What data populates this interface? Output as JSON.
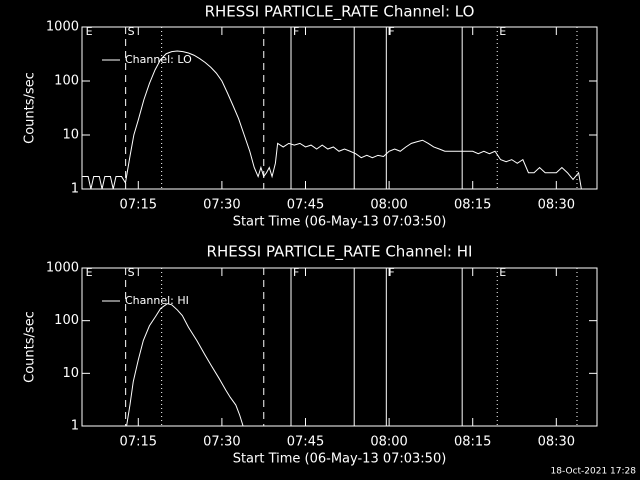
{
  "chart_data": [
    {
      "type": "line",
      "title": "RHESSI PARTICLE_RATE Channel: LO",
      "x_label": "Start Time (06-May-13 07:03:50)",
      "y_label": "Counts/sec",
      "xlim": [
        4.9,
        97.3
      ],
      "xticks": [
        {
          "value": 15,
          "label": "07:15"
        },
        {
          "value": 30,
          "label": "07:30"
        },
        {
          "value": 45,
          "label": "07:45"
        },
        {
          "value": 60,
          "label": "08:00"
        },
        {
          "value": 75,
          "label": "08:15"
        },
        {
          "value": 90,
          "label": "08:30"
        }
      ],
      "ylim": [
        1,
        1000
      ],
      "yticks": [
        1,
        10,
        100,
        1000
      ],
      "yscale": "log",
      "legend": "upper left",
      "series": [
        {
          "name": "Channel: LO",
          "color": "#ffffff",
          "x": [
            5,
            6,
            6.5,
            7,
            8,
            8.5,
            9,
            10,
            10.5,
            11,
            12,
            12.7,
            13.5,
            14.2,
            15,
            16,
            17,
            18,
            19,
            20,
            21,
            22,
            23,
            24,
            25,
            26,
            27,
            28,
            29,
            30,
            31,
            32,
            33,
            34,
            35,
            35.8,
            36.5,
            37,
            37.5,
            38,
            38.5,
            39,
            39.6,
            40,
            41,
            42,
            43,
            44,
            45,
            46,
            47,
            48,
            49,
            50,
            51,
            52,
            53,
            54,
            55,
            56,
            57,
            58,
            59,
            60,
            61,
            62,
            63,
            64,
            65,
            66,
            67,
            68,
            69,
            70,
            71,
            72,
            73,
            74,
            75,
            76,
            77,
            78,
            79,
            80,
            81,
            82,
            83,
            84,
            85,
            86,
            87,
            88,
            89,
            90,
            91,
            92,
            93,
            94,
            94.5
          ],
          "values": [
            1.7,
            1.7,
            1,
            1.7,
            1.7,
            1,
            1.7,
            1.7,
            1,
            1.7,
            1.7,
            1.3,
            4,
            10,
            19,
            45,
            90,
            160,
            250,
            320,
            350,
            360,
            350,
            330,
            300,
            260,
            220,
            180,
            140,
            100,
            60,
            35,
            20,
            10,
            5,
            2.5,
            1.7,
            2.5,
            1.7,
            2,
            2.5,
            1.7,
            3,
            7,
            6,
            7,
            6.5,
            7,
            6,
            6.5,
            5.5,
            6.5,
            5.5,
            6,
            5,
            5.5,
            5,
            4.5,
            3.8,
            4.2,
            3.8,
            4.2,
            4,
            5,
            5.5,
            5,
            6,
            7,
            7.5,
            8,
            7,
            6,
            5.5,
            5,
            5,
            5,
            5,
            5,
            5,
            4.5,
            5,
            4.5,
            5,
            3.5,
            3.2,
            3.5,
            3,
            3.5,
            2,
            2,
            2.5,
            2,
            2,
            2,
            2.5,
            2,
            1.5,
            2,
            1
          ]
        }
      ],
      "markers": [
        {
          "x": 12.73,
          "style": "dashed"
        },
        {
          "x": 19.19,
          "style": "dotted"
        },
        {
          "x": 37.51,
          "style": "dashed"
        },
        {
          "x": 42.4,
          "style": "solid"
        },
        {
          "x": 53.74,
          "style": "solid"
        },
        {
          "x": 59.5,
          "style": "solid"
        },
        {
          "x": 73.11,
          "style": "solid"
        },
        {
          "x": 79.4,
          "style": "dotted"
        },
        {
          "x": 93.71,
          "style": "dotted"
        }
      ],
      "annotations": [
        {
          "x": 5.2,
          "text": "E"
        },
        {
          "x": 12.73,
          "text": "S"
        },
        {
          "x": 42.4,
          "text": "F"
        },
        {
          "x": 59.5,
          "text": "F"
        },
        {
          "x": 79.4,
          "text": "E"
        }
      ]
    },
    {
      "type": "line",
      "title": "RHESSI PARTICLE_RATE Channel: HI",
      "x_label": "Start Time (06-May-13 07:03:50)",
      "y_label": "Counts/sec",
      "xlim": [
        4.9,
        97.3
      ],
      "xticks": [
        {
          "value": 15,
          "label": "07:15"
        },
        {
          "value": 30,
          "label": "07:30"
        },
        {
          "value": 45,
          "label": "07:45"
        },
        {
          "value": 60,
          "label": "08:00"
        },
        {
          "value": 75,
          "label": "08:15"
        },
        {
          "value": 90,
          "label": "08:30"
        }
      ],
      "ylim": [
        1,
        1000
      ],
      "yticks": [
        1,
        10,
        100,
        1000
      ],
      "yscale": "log",
      "legend": "upper left",
      "series": [
        {
          "name": "Channel: HI",
          "color": "#ffffff",
          "x": [
            12.9,
            13.5,
            14.1,
            15,
            15.9,
            17,
            18.1,
            19,
            20.2,
            21,
            22,
            22.9,
            24,
            25.5,
            27,
            28.1,
            29.5,
            30.7,
            31.5,
            32.5,
            33.2,
            33.8
          ],
          "values": [
            1,
            2.5,
            7,
            18,
            42,
            80,
            120,
            170,
            210,
            200,
            160,
            125,
            75,
            42,
            22,
            14,
            8,
            4.8,
            3.5,
            2.5,
            1.6,
            1
          ]
        }
      ],
      "markers": [
        {
          "x": 12.73,
          "style": "dashed"
        },
        {
          "x": 19.19,
          "style": "dotted"
        },
        {
          "x": 37.51,
          "style": "dashed"
        },
        {
          "x": 42.4,
          "style": "solid"
        },
        {
          "x": 53.74,
          "style": "solid"
        },
        {
          "x": 59.5,
          "style": "solid"
        },
        {
          "x": 73.11,
          "style": "solid"
        },
        {
          "x": 79.4,
          "style": "dotted"
        },
        {
          "x": 93.71,
          "style": "dotted"
        }
      ],
      "annotations": [
        {
          "x": 5.2,
          "text": "E"
        },
        {
          "x": 12.73,
          "text": "S"
        },
        {
          "x": 42.4,
          "text": "F"
        },
        {
          "x": 59.5,
          "text": "F"
        },
        {
          "x": 79.4,
          "text": "E"
        }
      ]
    }
  ],
  "footer": "18-Oct-2021 17:28"
}
